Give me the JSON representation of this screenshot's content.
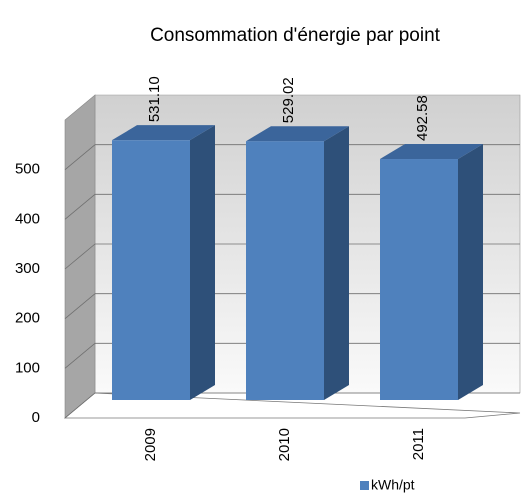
{
  "chart_data": {
    "type": "bar3d",
    "title": "Consommation d'énergie par point",
    "categories": [
      "2009",
      "2010",
      "2011"
    ],
    "series": [
      {
        "name": "kWh/pt",
        "color": "#4f81bd",
        "values": [
          531.1,
          529.02,
          492.58
        ],
        "value_labels": [
          "531.10",
          "529.02",
          "492.58"
        ]
      }
    ],
    "ylim": [
      0,
      600
    ],
    "yticks": [
      0,
      100,
      200,
      300,
      400,
      500
    ],
    "grid": true,
    "legend": "bottom"
  }
}
